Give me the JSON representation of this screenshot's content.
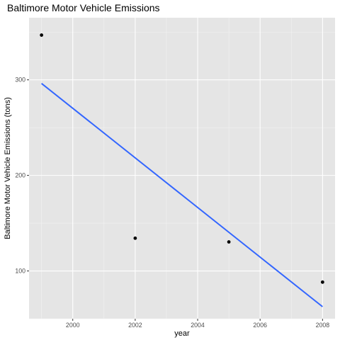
{
  "chart_data": {
    "type": "scatter",
    "title": "Baltimore Motor Vehicle Emissions",
    "xlabel": "year",
    "ylabel": "Baltimore Motor Vehicle Emissions (tons)",
    "xlim": [
      1998.6,
      2008.4
    ],
    "ylim": [
      50,
      365
    ],
    "x_ticks": [
      2000,
      2002,
      2004,
      2006,
      2008
    ],
    "y_ticks": [
      100,
      200,
      300
    ],
    "grid": true,
    "points": [
      {
        "x": 1999,
        "y": 346.8
      },
      {
        "x": 2002,
        "y": 134.3
      },
      {
        "x": 2005,
        "y": 130.4
      },
      {
        "x": 2008,
        "y": 88.3
      }
    ],
    "trend_line": {
      "x": [
        1999,
        2008
      ],
      "y": [
        296.2,
        62.6
      ]
    },
    "colors": {
      "panel_background": "#e5e5e5",
      "grid_major": "#ffffff",
      "grid_minor": "#f2f2f2",
      "points": "#000000",
      "trend_line": "#3366ff"
    }
  }
}
